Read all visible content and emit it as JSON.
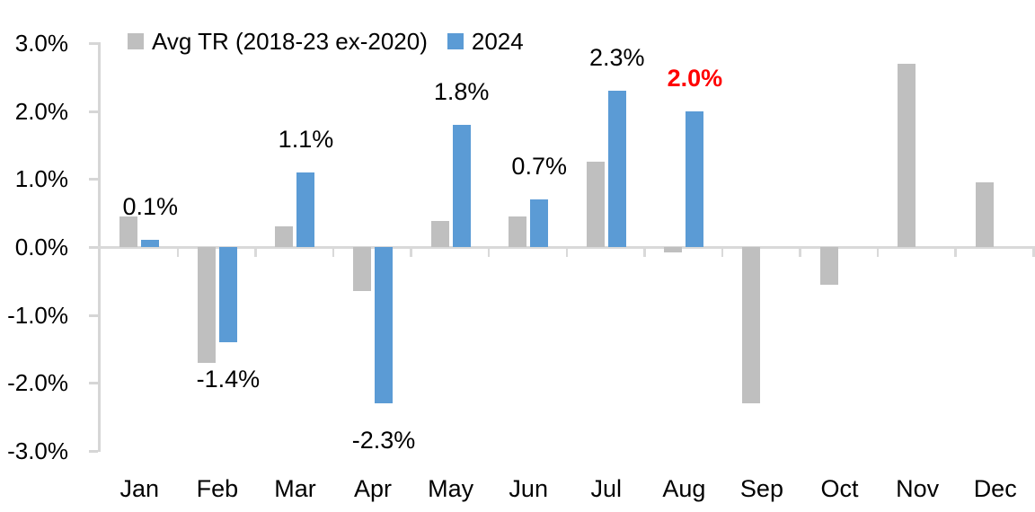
{
  "chart_data": {
    "type": "bar",
    "title": "",
    "categories": [
      "Jan",
      "Feb",
      "Mar",
      "Apr",
      "May",
      "Jun",
      "Jul",
      "Aug",
      "Sep",
      "Oct",
      "Nov",
      "Dec"
    ],
    "series": [
      {
        "name": "Avg TR (2018-23 ex-2020)",
        "color": "#bfbfbf",
        "values": [
          0.45,
          -1.7,
          0.3,
          -0.65,
          0.38,
          0.45,
          1.25,
          -0.08,
          -2.3,
          -0.55,
          2.7,
          0.95
        ]
      },
      {
        "name": "2024",
        "color": "#5b9bd5",
        "values": [
          0.1,
          -1.4,
          1.1,
          -2.3,
          1.8,
          0.7,
          2.3,
          2.0,
          null,
          null,
          null,
          null
        ]
      }
    ],
    "data_labels": [
      {
        "text": "0.1%",
        "color": "#000000",
        "bold": false
      },
      {
        "text": "-1.4%",
        "color": "#000000",
        "bold": false
      },
      {
        "text": "1.1%",
        "color": "#000000",
        "bold": false
      },
      {
        "text": "-2.3%",
        "color": "#000000",
        "bold": false
      },
      {
        "text": "1.8%",
        "color": "#000000",
        "bold": false
      },
      {
        "text": "0.7%",
        "color": "#000000",
        "bold": false
      },
      {
        "text": "2.3%",
        "color": "#000000",
        "bold": false
      },
      {
        "text": "2.0%",
        "color": "#ff0000",
        "bold": true
      },
      null,
      null,
      null,
      null
    ],
    "y_axis": {
      "tick_labels": [
        "3.0%",
        "2.0%",
        "1.0%",
        "0.0%",
        "-1.0%",
        "-2.0%",
        "-3.0%"
      ],
      "max": 3.0,
      "min": -3.0,
      "step": 1.0
    },
    "legend_position": "top",
    "grid": "off",
    "axis_color": "#d9d9d9"
  }
}
